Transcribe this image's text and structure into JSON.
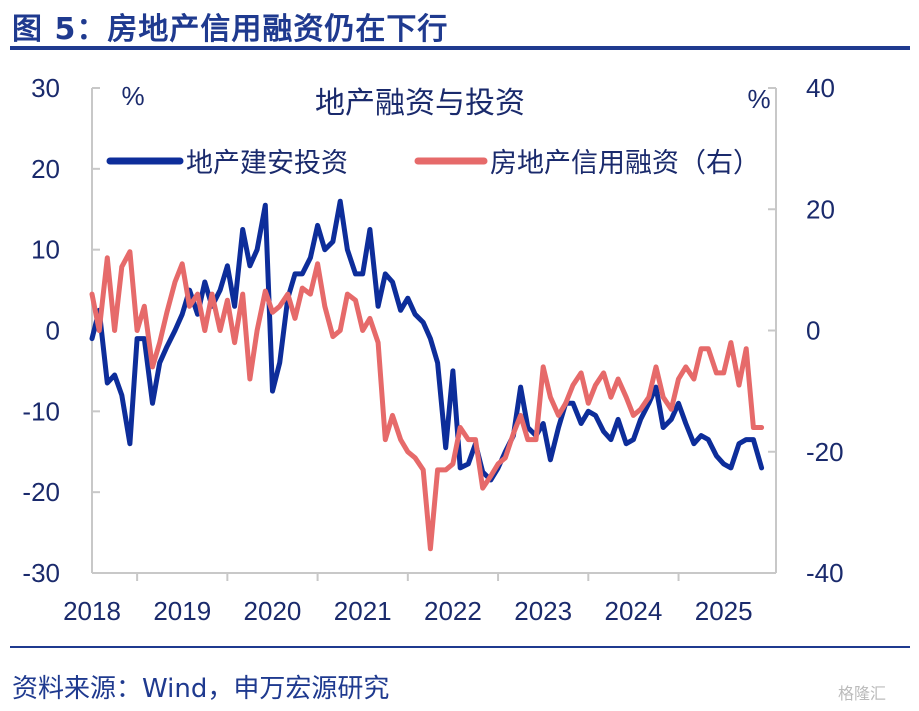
{
  "figure": {
    "title": "图 5：房地产信用融资仍在下行",
    "source": "资料来源：Wind，申万宏源研究",
    "watermark": "格隆汇"
  },
  "colors": {
    "series1": "#0d2d9a",
    "series2": "#e66a6a",
    "axis": "#c8c8c8",
    "text": "#1a2a6c",
    "brand": "#1f3a8f"
  },
  "chart_data": {
    "type": "line",
    "title": "地产融资与投资",
    "left_unit": "%",
    "right_unit": "%",
    "ylim_left": [
      -30,
      30
    ],
    "ylim_right": [
      -40,
      40
    ],
    "y_ticks_left": [
      30,
      20,
      10,
      0,
      -10,
      -20,
      -30
    ],
    "y_ticks_right": [
      40,
      20,
      0,
      -20,
      -40
    ],
    "x_range": [
      2018.0,
      2025.58
    ],
    "x_ticks": [
      2018,
      2019,
      2020,
      2021,
      2022,
      2023,
      2024,
      2025
    ],
    "legend_position": "top",
    "series": [
      {
        "name": "地产建安投资",
        "axis": "left",
        "x": [
          2018.0,
          2018.08,
          2018.17,
          2018.25,
          2018.33,
          2018.42,
          2018.5,
          2018.58,
          2018.67,
          2018.75,
          2018.83,
          2018.92,
          2019.0,
          2019.08,
          2019.17,
          2019.25,
          2019.33,
          2019.42,
          2019.5,
          2019.58,
          2019.67,
          2019.75,
          2019.83,
          2019.92,
          2020.0,
          2020.08,
          2020.17,
          2020.25,
          2020.33,
          2020.42,
          2020.5,
          2020.58,
          2020.67,
          2020.75,
          2020.83,
          2020.92,
          2021.0,
          2021.08,
          2021.17,
          2021.25,
          2021.33,
          2021.42,
          2021.5,
          2021.58,
          2021.67,
          2021.75,
          2021.83,
          2021.92,
          2022.0,
          2022.08,
          2022.17,
          2022.25,
          2022.33,
          2022.42,
          2022.5,
          2022.58,
          2022.67,
          2022.75,
          2022.83,
          2022.92,
          2023.0,
          2023.08,
          2023.17,
          2023.25,
          2023.33,
          2023.42,
          2023.5,
          2023.58,
          2023.67,
          2023.75,
          2023.83,
          2023.92,
          2024.0,
          2024.08,
          2024.17,
          2024.25,
          2024.33,
          2024.42,
          2024.5,
          2024.58,
          2024.67,
          2024.75,
          2024.83,
          2024.92,
          2025.0,
          2025.08,
          2025.17,
          2025.25,
          2025.33,
          2025.42
        ],
        "values": [
          -1,
          2.5,
          -6.5,
          -5.5,
          -8,
          -14,
          -1,
          -1,
          -9,
          -4,
          -2,
          0,
          2,
          5,
          2,
          6,
          3,
          5,
          8,
          3,
          12.5,
          8,
          10,
          15.5,
          -7.5,
          -4,
          4,
          7,
          7,
          9,
          13,
          10,
          11,
          16,
          10,
          7,
          7,
          12.5,
          3,
          7,
          6,
          2.5,
          4,
          2,
          1,
          -1,
          -4,
          -14.5,
          -5,
          -17,
          -16.5,
          -14,
          -17.5,
          -18.5,
          -17,
          -15,
          -13,
          -7,
          -12,
          -13,
          -11.5,
          -16,
          -12,
          -9,
          -9,
          -11.5,
          -10,
          -10.5,
          -12.5,
          -13.5,
          -11,
          -14,
          -13.5,
          -11,
          -9,
          -7,
          -12,
          -11,
          -9,
          -11.5,
          -14,
          -13,
          -13.5,
          -15.5,
          -16.5,
          -17,
          -14,
          -13.5,
          -13.5,
          -17
        ]
      },
      {
        "name": "房地产信用融资（右）",
        "axis": "right",
        "x": [
          2018.0,
          2018.08,
          2018.17,
          2018.25,
          2018.33,
          2018.42,
          2018.5,
          2018.58,
          2018.67,
          2018.75,
          2018.83,
          2018.92,
          2019.0,
          2019.08,
          2019.17,
          2019.25,
          2019.33,
          2019.42,
          2019.5,
          2019.58,
          2019.67,
          2019.75,
          2019.83,
          2019.92,
          2020.0,
          2020.08,
          2020.17,
          2020.25,
          2020.33,
          2020.42,
          2020.5,
          2020.58,
          2020.67,
          2020.75,
          2020.83,
          2020.92,
          2021.0,
          2021.08,
          2021.17,
          2021.25,
          2021.33,
          2021.42,
          2021.5,
          2021.58,
          2021.67,
          2021.75,
          2021.83,
          2021.92,
          2022.0,
          2022.08,
          2022.17,
          2022.25,
          2022.33,
          2022.42,
          2022.5,
          2022.58,
          2022.67,
          2022.75,
          2022.83,
          2022.92,
          2023.0,
          2023.08,
          2023.17,
          2023.25,
          2023.33,
          2023.42,
          2023.5,
          2023.58,
          2023.67,
          2023.75,
          2023.83,
          2023.92,
          2024.0,
          2024.08,
          2024.17,
          2024.25,
          2024.33,
          2024.42,
          2024.5,
          2024.58,
          2024.67,
          2024.75,
          2024.83,
          2024.92,
          2025.0,
          2025.08,
          2025.17,
          2025.25,
          2025.33,
          2025.42
        ],
        "values": [
          6,
          0,
          12,
          0,
          10.5,
          13,
          0,
          4,
          -6,
          -2,
          3,
          8,
          11,
          4,
          6,
          0,
          6,
          0,
          5,
          -2,
          6,
          -8,
          0,
          6.5,
          3,
          4,
          6,
          2,
          7,
          6,
          11,
          4,
          -1,
          0,
          6,
          5,
          0,
          2,
          -2,
          -18,
          -14,
          -18,
          -20,
          -21,
          -23,
          -36,
          -23,
          -23,
          -22,
          -16,
          -18,
          -18,
          -26,
          -24,
          -22,
          -21,
          -17,
          -14,
          -18,
          -18,
          -6,
          -11,
          -14,
          -12,
          -9,
          -7,
          -12,
          -9,
          -7,
          -11,
          -8,
          -11,
          -14,
          -13,
          -11,
          -6,
          -11,
          -13,
          -8,
          -6,
          -8,
          -3,
          -3,
          -7,
          -7,
          -2,
          -9,
          -3,
          -16,
          -16
        ]
      }
    ]
  }
}
